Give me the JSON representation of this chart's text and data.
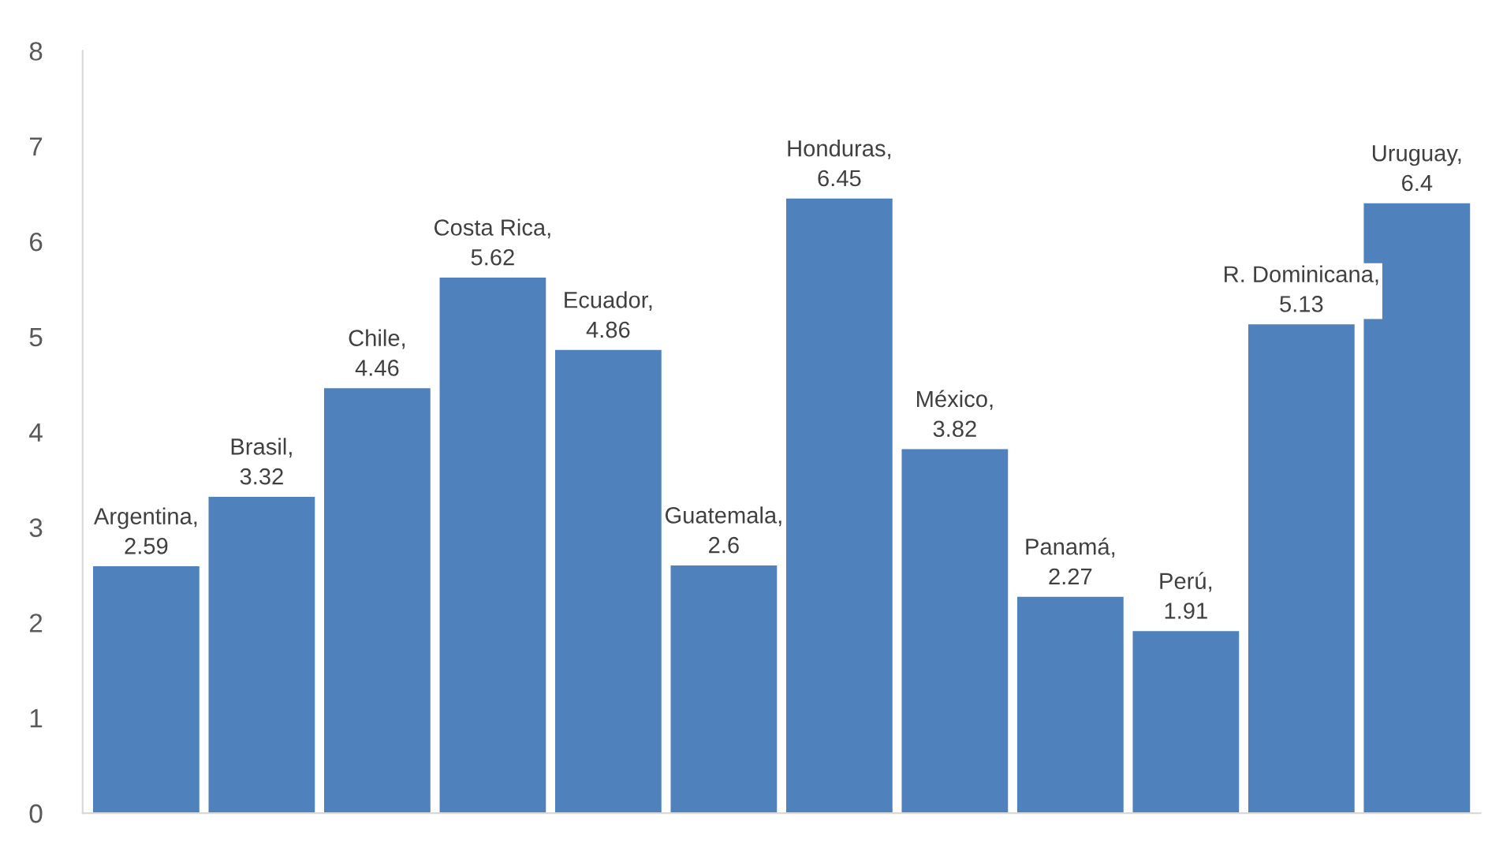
{
  "chart_data": {
    "type": "bar",
    "categories": [
      null,
      null,
      null,
      null,
      null,
      null,
      null,
      null,
      null,
      null,
      null,
      null
    ],
    "values": [
      2.59,
      3.32,
      4.46,
      5.62,
      4.86,
      2.6,
      6.45,
      3.82,
      2.27,
      1.91,
      5.13,
      6.4
    ],
    "value_labels": [
      "Argentina, 2.59",
      "Brasil, 3.32",
      "Chile, 4.46",
      "Costa Rica, 5.62",
      "Ecuador, 4.86",
      "Guatemala, 2.6",
      "Honduras, 6.45",
      "México, 3.82",
      "Panamá, 2.27",
      "Perú, 1.91",
      "R. Dominicana, 5.13",
      "Uruguay, 6.4"
    ],
    "color": "#4f81bd",
    "ylim": [
      0,
      8
    ],
    "yticks": [
      0,
      1,
      2,
      3,
      4,
      5,
      6,
      7,
      8
    ],
    "grid": false
  }
}
